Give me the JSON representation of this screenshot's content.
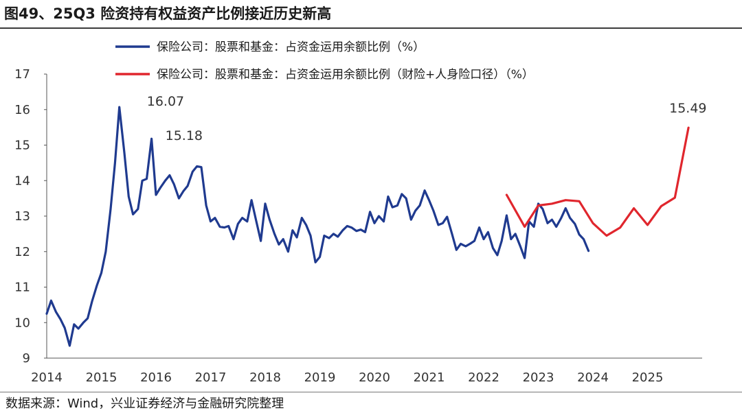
{
  "title": "图49、25Q3 险资持有权益资产比例接近历史新高",
  "source": "数据来源：Wind，兴业证券经济与金融研究院整理",
  "chart_data": {
    "type": "line",
    "ylim": [
      9,
      17
    ],
    "yticks": [
      "9",
      "10",
      "11",
      "12",
      "13",
      "14",
      "15",
      "16",
      "17"
    ],
    "xlim": [
      2014,
      2026
    ],
    "xticks": [
      "2014",
      "2015",
      "2016",
      "2017",
      "2018",
      "2019",
      "2020",
      "2021",
      "2022",
      "2023",
      "2024",
      "2025"
    ],
    "series": [
      {
        "name": "保险公司：股票和基金：占资金运用余额比例（%）",
        "color": "#1f3a8f",
        "points": [
          [
            2014.0,
            10.25
          ],
          [
            2014.08,
            10.62
          ],
          [
            2014.17,
            10.3
          ],
          [
            2014.25,
            10.1
          ],
          [
            2014.33,
            9.85
          ],
          [
            2014.42,
            9.35
          ],
          [
            2014.5,
            9.95
          ],
          [
            2014.58,
            9.83
          ],
          [
            2014.67,
            10.0
          ],
          [
            2014.75,
            10.12
          ],
          [
            2014.83,
            10.6
          ],
          [
            2014.92,
            11.05
          ],
          [
            2015.0,
            11.4
          ],
          [
            2015.08,
            12.0
          ],
          [
            2015.17,
            13.2
          ],
          [
            2015.25,
            14.5
          ],
          [
            2015.33,
            16.07
          ],
          [
            2015.42,
            14.8
          ],
          [
            2015.5,
            13.55
          ],
          [
            2015.58,
            13.05
          ],
          [
            2015.67,
            13.2
          ],
          [
            2015.75,
            14.0
          ],
          [
            2015.83,
            14.05
          ],
          [
            2015.92,
            15.18
          ],
          [
            2016.0,
            13.6
          ],
          [
            2016.08,
            13.8
          ],
          [
            2016.17,
            14.0
          ],
          [
            2016.25,
            14.15
          ],
          [
            2016.33,
            13.9
          ],
          [
            2016.42,
            13.5
          ],
          [
            2016.5,
            13.7
          ],
          [
            2016.58,
            13.85
          ],
          [
            2016.67,
            14.25
          ],
          [
            2016.75,
            14.4
          ],
          [
            2016.83,
            14.38
          ],
          [
            2016.92,
            13.3
          ],
          [
            2017.0,
            12.85
          ],
          [
            2017.08,
            12.95
          ],
          [
            2017.17,
            12.7
          ],
          [
            2017.25,
            12.68
          ],
          [
            2017.33,
            12.72
          ],
          [
            2017.42,
            12.35
          ],
          [
            2017.5,
            12.78
          ],
          [
            2017.58,
            12.95
          ],
          [
            2017.67,
            12.85
          ],
          [
            2017.75,
            13.45
          ],
          [
            2017.83,
            12.9
          ],
          [
            2017.92,
            12.3
          ],
          [
            2018.0,
            13.35
          ],
          [
            2018.08,
            12.9
          ],
          [
            2018.17,
            12.5
          ],
          [
            2018.25,
            12.2
          ],
          [
            2018.33,
            12.35
          ],
          [
            2018.42,
            12.0
          ],
          [
            2018.5,
            12.6
          ],
          [
            2018.58,
            12.4
          ],
          [
            2018.67,
            12.95
          ],
          [
            2018.75,
            12.75
          ],
          [
            2018.83,
            12.45
          ],
          [
            2018.92,
            11.7
          ],
          [
            2019.0,
            11.85
          ],
          [
            2019.08,
            12.45
          ],
          [
            2019.17,
            12.38
          ],
          [
            2019.25,
            12.5
          ],
          [
            2019.33,
            12.42
          ],
          [
            2019.42,
            12.6
          ],
          [
            2019.5,
            12.72
          ],
          [
            2019.58,
            12.68
          ],
          [
            2019.67,
            12.58
          ],
          [
            2019.75,
            12.62
          ],
          [
            2019.83,
            12.55
          ],
          [
            2019.92,
            13.12
          ],
          [
            2020.0,
            12.8
          ],
          [
            2020.08,
            13.0
          ],
          [
            2020.17,
            12.85
          ],
          [
            2020.25,
            13.55
          ],
          [
            2020.33,
            13.25
          ],
          [
            2020.42,
            13.3
          ],
          [
            2020.5,
            13.62
          ],
          [
            2020.58,
            13.5
          ],
          [
            2020.67,
            12.9
          ],
          [
            2020.75,
            13.15
          ],
          [
            2020.83,
            13.3
          ],
          [
            2020.92,
            13.72
          ],
          [
            2021.0,
            13.45
          ],
          [
            2021.08,
            13.15
          ],
          [
            2021.17,
            12.75
          ],
          [
            2021.25,
            12.8
          ],
          [
            2021.33,
            12.98
          ],
          [
            2021.42,
            12.5
          ],
          [
            2021.5,
            12.05
          ],
          [
            2021.58,
            12.22
          ],
          [
            2021.67,
            12.15
          ],
          [
            2021.75,
            12.22
          ],
          [
            2021.83,
            12.3
          ],
          [
            2021.92,
            12.68
          ],
          [
            2022.0,
            12.35
          ],
          [
            2022.08,
            12.55
          ],
          [
            2022.17,
            12.1
          ],
          [
            2022.25,
            11.9
          ],
          [
            2022.33,
            12.3
          ],
          [
            2022.42,
            13.02
          ],
          [
            2022.5,
            12.35
          ],
          [
            2022.58,
            12.5
          ],
          [
            2022.67,
            12.15
          ],
          [
            2022.75,
            11.82
          ],
          [
            2022.83,
            12.85
          ],
          [
            2022.92,
            12.7
          ],
          [
            2023.0,
            13.35
          ],
          [
            2023.08,
            13.2
          ],
          [
            2023.17,
            12.8
          ],
          [
            2023.25,
            12.9
          ],
          [
            2023.33,
            12.7
          ],
          [
            2023.42,
            12.95
          ],
          [
            2023.5,
            13.22
          ],
          [
            2023.58,
            12.95
          ],
          [
            2023.67,
            12.78
          ],
          [
            2023.75,
            12.48
          ],
          [
            2023.83,
            12.35
          ],
          [
            2023.92,
            12.02
          ]
        ]
      },
      {
        "name": "保险公司：股票和基金：占资金运用余额比例（财险+人身险口径）（%）",
        "color": "#e0262d",
        "points": [
          [
            2022.42,
            13.6
          ],
          [
            2022.75,
            12.7
          ],
          [
            2023.0,
            13.3
          ],
          [
            2023.25,
            13.35
          ],
          [
            2023.5,
            13.45
          ],
          [
            2023.75,
            13.42
          ],
          [
            2024.0,
            12.8
          ],
          [
            2024.25,
            12.45
          ],
          [
            2024.5,
            12.68
          ],
          [
            2024.75,
            13.22
          ],
          [
            2025.0,
            12.75
          ],
          [
            2025.25,
            13.28
          ],
          [
            2025.5,
            13.52
          ],
          [
            2025.75,
            15.49
          ]
        ]
      }
    ],
    "annotations": [
      {
        "text": "16.07",
        "x": 2015.33,
        "y": 16.07
      },
      {
        "text": "15.18",
        "x": 2015.92,
        "y": 15.18
      },
      {
        "text": "15.49",
        "x": 2025.75,
        "y": 15.49
      }
    ],
    "legend_position": "top-center"
  }
}
